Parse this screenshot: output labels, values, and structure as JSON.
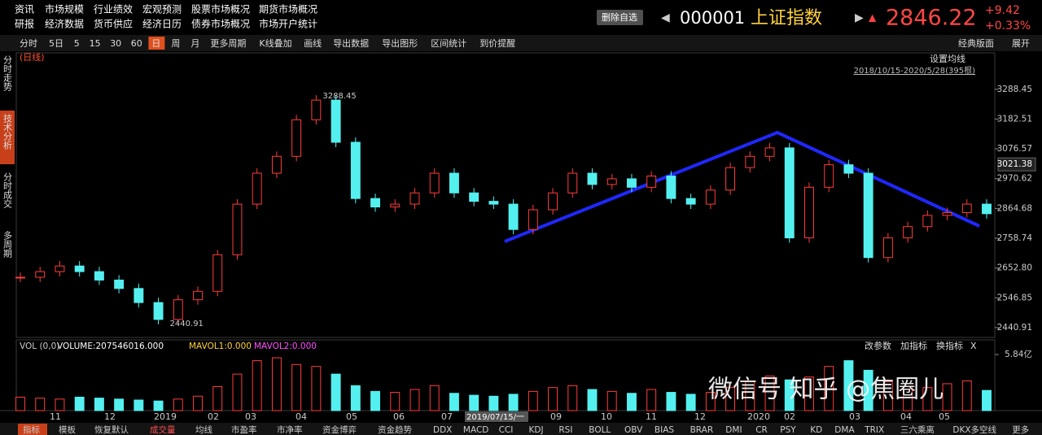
{
  "menu": [
    [
      "资讯",
      "市场规模",
      "行业绩效",
      "宏观预测",
      "股票市场概况",
      "期货市场概况"
    ],
    [
      "研报",
      "经济数据",
      "货币供应",
      "经济日历",
      "债券市场概况",
      "市场开户统计"
    ]
  ],
  "quote": {
    "button": "删除自选",
    "code": "000001",
    "name": "上证指数",
    "price": "2846.22",
    "change": "+9.42",
    "pct": "+0.33%"
  },
  "toolbar": [
    "分时",
    "5日",
    "5",
    "15",
    "30",
    "60",
    "日",
    "周",
    "月",
    "更多周期",
    "K线叠加",
    "画线",
    "导出数据",
    "导出图形",
    "区间统计",
    "到价提醒"
  ],
  "toolbar_right": [
    "经典版面",
    "展开"
  ],
  "sidebar": [
    "分时走势",
    "技术分析",
    "分时成交",
    "多周期"
  ],
  "chart_data": {
    "type": "candlestick",
    "tag": "(日线)",
    "settings": "设置均线",
    "range": "2018/10/15-2020/5/28(395根)",
    "close": [
      2620,
      2640,
      2660,
      2640,
      2610,
      2580,
      2530,
      2470,
      2540,
      2570,
      2700,
      2880,
      2990,
      3050,
      3180,
      3250,
      3100,
      2900,
      2870,
      2880,
      2920,
      2990,
      2920,
      2890,
      2880,
      2790,
      2860,
      2920,
      2990,
      2950,
      2970,
      2940,
      2980,
      2900,
      2880,
      2930,
      3010,
      3050,
      3080,
      2760,
      2940,
      3020,
      2990,
      2690,
      2760,
      2800,
      2840,
      2850,
      2880,
      2846
    ],
    "up_color": "#ff3c3c",
    "down_color": "#54f0f0",
    "ylim": [
      2406,
      3418
    ],
    "yticks": [
      3288.45,
      3182.51,
      3076.57,
      2970.62,
      2864.68,
      2758.74,
      {
        "value": 2652.8,
        "label": "2652.80"
      },
      2546.85,
      2440.91
    ],
    "high": 3288.45,
    "low": 2440.91,
    "last": 3021.38,
    "dates": [
      "11",
      "12",
      "2019",
      "02",
      "03",
      "04",
      "05",
      "06",
      "07",
      "2019/07/15/一",
      "09",
      "10",
      "11",
      "12",
      "2020",
      "02",
      "03",
      "04",
      "05"
    ],
    "vol_header": [
      "VOL (0,0)",
      "VOLUME:207546016.000",
      "MAVOL1:0.000",
      "MAVOL2:0.000"
    ],
    "vol_buttons": [
      "改参数",
      "加指标",
      "换指标",
      "X"
    ],
    "volume": [
      1.4,
      1.3,
      1.2,
      1.4,
      1.3,
      1.2,
      1.1,
      1.0,
      1.2,
      1.5,
      2.5,
      3.8,
      5.2,
      5.5,
      4.8,
      4.6,
      3.8,
      2.6,
      2.0,
      1.9,
      2.2,
      2.6,
      1.8,
      1.6,
      1.5,
      1.7,
      2.0,
      2.4,
      2.6,
      2.2,
      2.0,
      1.8,
      2.2,
      1.9,
      1.7,
      1.9,
      2.4,
      3.0,
      3.6,
      3.2,
      3.5,
      4.6,
      5.2,
      4.2,
      3.0,
      2.5,
      2.4,
      2.8,
      3.1,
      2.1
    ],
    "vlim": [
      0,
      6.35
    ],
    "vticks": [
      {
        "value": 5.84,
        "label": "5.84亿"
      }
    ]
  },
  "watermark": "微信号 知乎 @焦圈儿",
  "bottom_tabs": [
    "指标",
    "模板",
    "恢复默认",
    "成交量",
    "均线",
    "市盈率",
    "市净率",
    "资金博弈",
    "资金趋势",
    "DDX",
    "MACD",
    "CCI",
    "KDJ",
    "RSI",
    "BOLL",
    "OBV",
    "BIAS",
    "BRAR",
    "DMI",
    "CR",
    "PSY",
    "KD",
    "DMA",
    "TRIX",
    "三六乘离",
    "DKX多空线",
    "更多"
  ]
}
